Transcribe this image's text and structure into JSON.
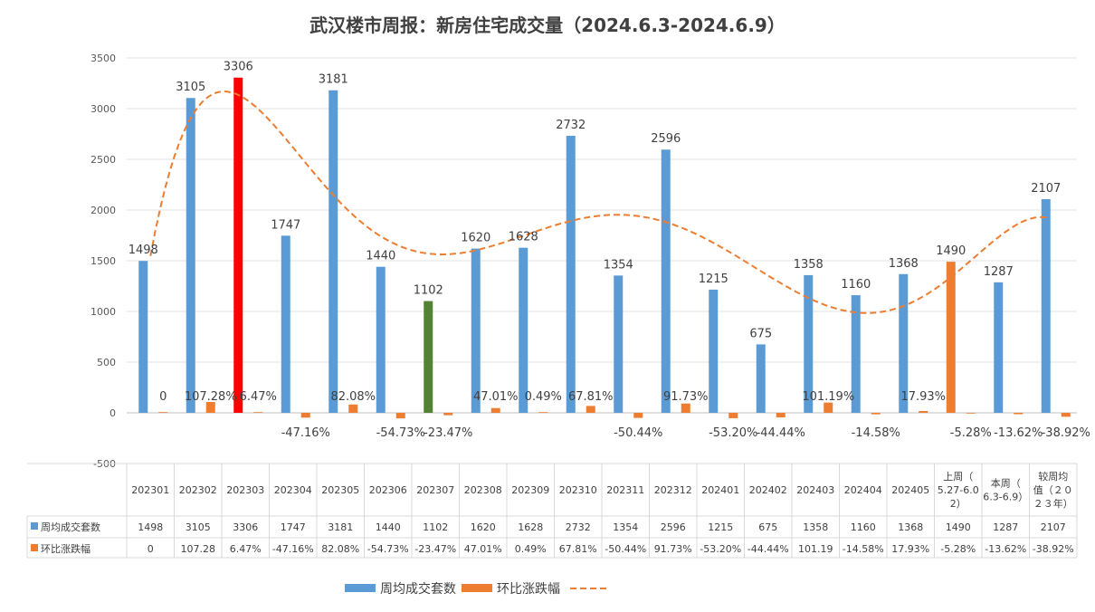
{
  "chart_data": {
    "type": "bar",
    "title": "武汉楼市周报：新房住宅成交量（2024.6.3-2024.6.9）",
    "categories": [
      "202301",
      "202302",
      "202303",
      "202304",
      "202305",
      "202306",
      "202307",
      "202308",
      "202309",
      "202310",
      "202311",
      "202312",
      "202401",
      "202402",
      "202403",
      "202404",
      "202405",
      "上周（5.27-6.02）",
      "本周（6.3-6.9）",
      "较周均值（2023年）"
    ],
    "category_lines": [
      [
        "202301"
      ],
      [
        "202302"
      ],
      [
        "202303"
      ],
      [
        "202304"
      ],
      [
        "202305"
      ],
      [
        "202306"
      ],
      [
        "202307"
      ],
      [
        "202308"
      ],
      [
        "202309"
      ],
      [
        "202310"
      ],
      [
        "202311"
      ],
      [
        "202312"
      ],
      [
        "202401"
      ],
      [
        "202402"
      ],
      [
        "202403"
      ],
      [
        "202404"
      ],
      [
        "202405"
      ],
      [
        "上周（",
        "5.27-6.0",
        "2）"
      ],
      [
        "本周（",
        "6.3-6.9）"
      ],
      [
        "较周均",
        "值（２０",
        "２３年）"
      ]
    ],
    "ylim": [
      -500,
      3500
    ],
    "yticks": [
      -500,
      0,
      500,
      1000,
      1500,
      2000,
      2500,
      3000,
      3500
    ],
    "grid": true,
    "legend_position": "bottom",
    "series": [
      {
        "name": "周均成交套数",
        "color": "#5b9bd5",
        "values": [
          1498,
          3105,
          3306,
          1747,
          3181,
          1440,
          1102,
          1620,
          1628,
          2732,
          1354,
          2596,
          1215,
          675,
          1358,
          1160,
          1368,
          1490,
          1287,
          2107
        ],
        "labels": [
          "1498",
          "3105",
          "3306",
          "1747",
          "3181",
          "1440",
          "1102",
          "1620",
          "1628",
          "2732",
          "1354",
          "2596",
          "1215",
          "675",
          "1358",
          "1160",
          "1368",
          "1490",
          "1287",
          "2107"
        ],
        "highlight_colors": {
          "2": "#ff0000",
          "6": "#548235",
          "17": "#ed7d31"
        }
      },
      {
        "name": "环比涨跌幅",
        "color": "#ed7d31",
        "values": [
          0,
          107.28,
          6.47,
          -47.16,
          82.08,
          -54.73,
          -23.47,
          47.01,
          0.49,
          67.81,
          -50.44,
          91.73,
          -53.2,
          -44.44,
          101.19,
          -14.58,
          17.93,
          -5.28,
          -13.62,
          -38.92
        ],
        "labels": [
          "0",
          "107.28%",
          "6.47%",
          "-47.16%",
          "82.08%",
          "-54.73%",
          "-23.47%",
          "47.01%",
          "0.49%",
          "67.81%",
          "-50.44%",
          "91.73%",
          "-53.20%",
          "-44.44%",
          "101.19%",
          "-14.58%",
          "17.93%",
          "-5.28%",
          "-13.62%",
          "-38.92%"
        ],
        "table_labels": [
          "0",
          "107.28",
          "6.47%",
          "-47.16%",
          "82.08%",
          "-54.73%",
          "-23.47%",
          "47.01%",
          "0.49%",
          "67.81%",
          "-50.44%",
          "91.73%",
          "-53.20%",
          "-44.44%",
          "101.19",
          "-14.58%",
          "17.93%",
          "-5.28%",
          "-13.62%",
          "-38.92%"
        ]
      }
    ],
    "trendline": {
      "type": "polynomial",
      "color": "#ed7d31",
      "style": "dashed"
    }
  }
}
